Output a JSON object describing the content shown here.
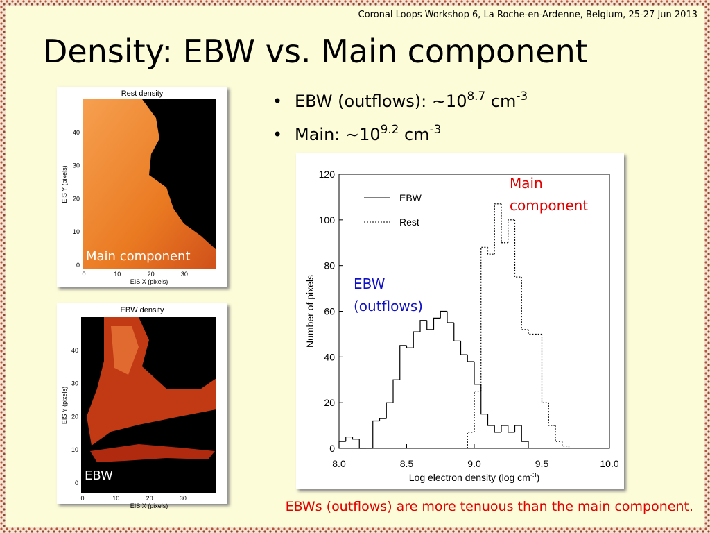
{
  "header": "Coronal Loops Workshop 6, La Roche-en-Ardenne, Belgium, 25-27 Jun 2013",
  "title": "Density: EBW vs. Main component",
  "bullets": [
    [
      "EBW (outflows): ∼10",
      "8.7",
      " cm",
      "-3"
    ],
    [
      "Main: ∼10",
      "9.2",
      " cm",
      "-3"
    ]
  ],
  "panels": [
    {
      "title": "Rest density",
      "y_label": "EIS Y (pixels)",
      "x_label": "EIS X (pixels)",
      "yticks": [
        0,
        10,
        20,
        30,
        40
      ],
      "xticks": [
        0,
        10,
        20,
        30
      ],
      "label": "Main component"
    },
    {
      "title": "EBW density",
      "y_label": "EIS Y (pixels)",
      "x_label": "EIS X (pixels)",
      "yticks": [
        0,
        10,
        20,
        30,
        40
      ],
      "xticks": [
        0,
        10,
        20,
        30
      ],
      "label": "EBW"
    }
  ],
  "caption": "EBWs (outflows) are more tenuous than the main component.",
  "chart_data": {
    "type": "histogram",
    "y_label": "Number of pixels",
    "x_label": [
      "Log electron density (log cm",
      "-3",
      ")"
    ],
    "xlim": [
      8,
      10
    ],
    "xticks": [
      {
        "value": 8,
        "label": "8.0"
      },
      {
        "value": 8.5,
        "label": "8.5"
      },
      {
        "value": 9,
        "label": "9.0"
      },
      {
        "value": 9.5,
        "label": "9.5"
      },
      {
        "value": 10,
        "label": "10.0"
      }
    ],
    "ylim": [
      0,
      120
    ],
    "yticks": [
      0,
      20,
      40,
      60,
      80,
      100,
      120
    ],
    "series": [
      {
        "name": "EBW",
        "color": "#000000",
        "style": "solid",
        "bins": [
          8,
          8.05,
          8.1,
          8.15,
          8.2,
          8.25,
          8.3,
          8.35,
          8.4,
          8.45,
          8.5,
          8.55,
          8.6,
          8.65,
          8.7,
          8.75,
          8.8,
          8.85,
          8.9,
          8.95,
          9,
          9.05,
          9.1,
          9.15,
          9.2,
          9.25,
          9.3,
          9.35,
          9.4
        ],
        "values": [
          3,
          5,
          4,
          0,
          0,
          12,
          13,
          20,
          30,
          45,
          44,
          51,
          56,
          52,
          57,
          60,
          55,
          47,
          41,
          38,
          28,
          15,
          10,
          7,
          10,
          7,
          10,
          3
        ]
      },
      {
        "name": "Rest",
        "color": "#000000",
        "style": "dotted",
        "bins": [
          8.95,
          9,
          9.05,
          9.1,
          9.15,
          9.2,
          9.25,
          9.3,
          9.35,
          9.4,
          9.45,
          9.5,
          9.55,
          9.6,
          9.65,
          9.7
        ],
        "values": [
          7,
          25,
          88,
          85,
          107,
          90,
          100,
          75,
          52,
          50,
          50,
          20,
          10,
          3,
          1
        ]
      }
    ],
    "annotations": [
      {
        "text": "Main component",
        "color": "#e00000"
      },
      {
        "text": "EBW (outflows)",
        "color": "#1010c8"
      }
    ]
  }
}
